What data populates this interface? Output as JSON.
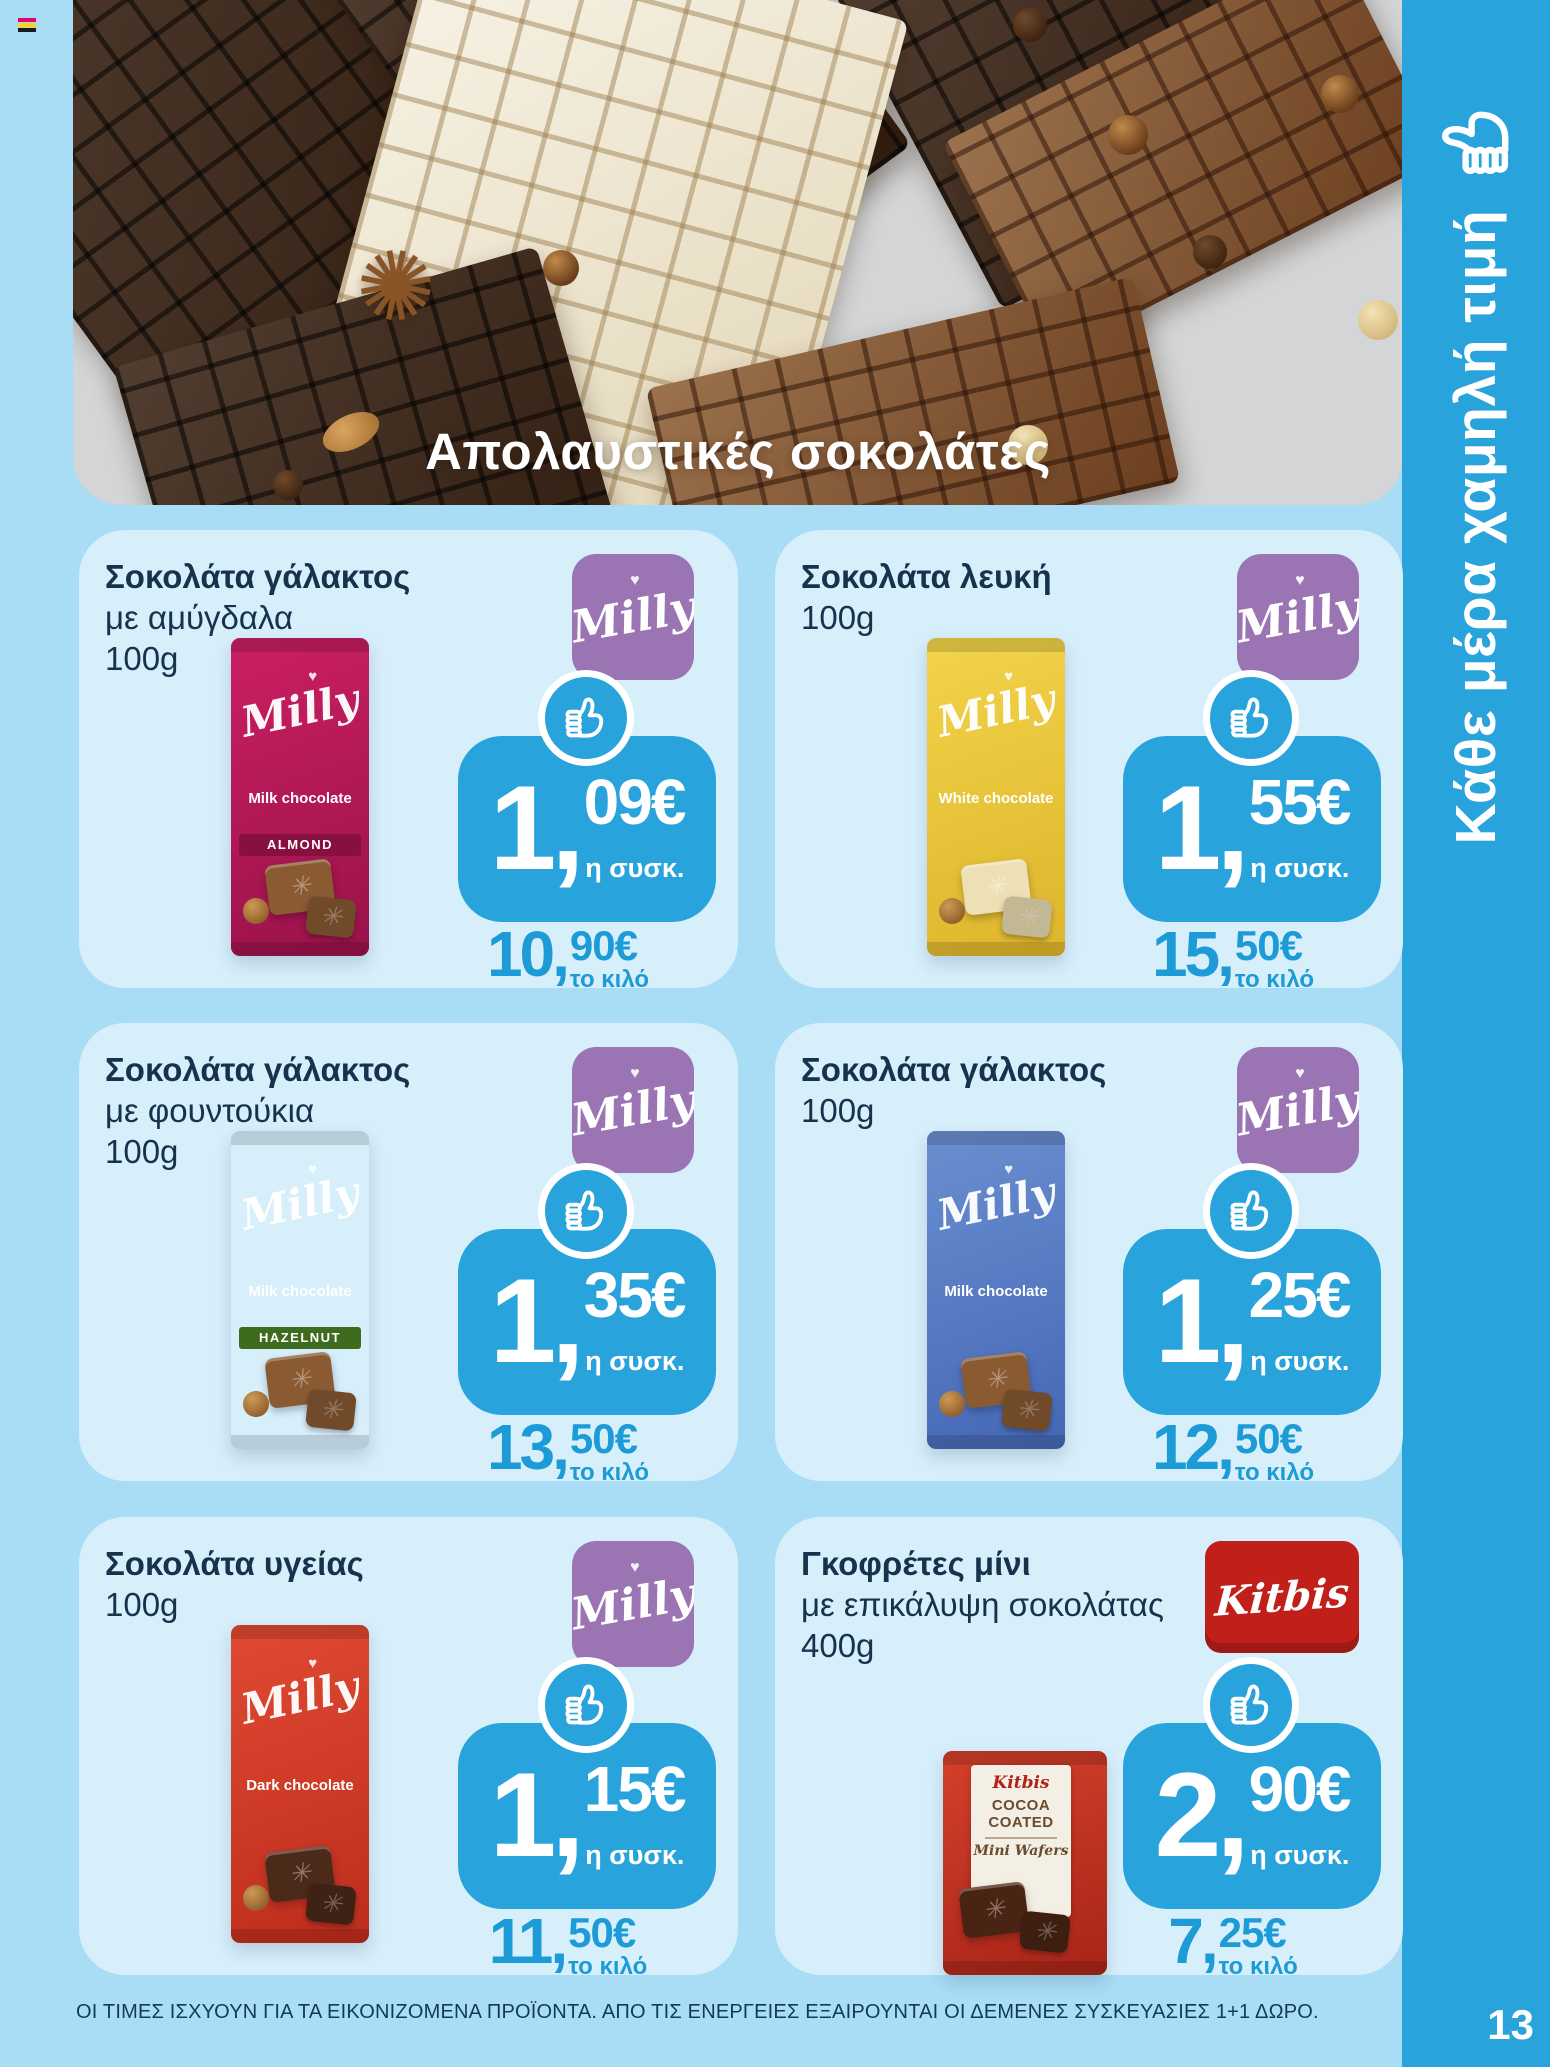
{
  "page": {
    "background": "#a9ddf5",
    "card_background": "#d7eefb",
    "accent_blue": "#29a3dc",
    "text_navy": "#16324c",
    "disclaimer": "ΟΙ ΤΙΜΕΣ ΙΣΧΥΟΥΝ ΓΙΑ ΤΑ ΕΙΚΟΝΙΖΟΜΕΝΑ ΠΡΟΪΟΝΤΑ. ΑΠΟ ΤΙΣ ΕΝΕΡΓΕΙΕΣ ΕΞΑΙΡΟΥΝΤΑΙ ΟΙ ΔΕΜΕΝΕΣ ΣΥΣΚΕΥΑΣΙΕΣ 1+1 ΔΩΡΟ.",
    "print_mark_colors": [
      "#e6007e",
      "#ffd400",
      "#1a1a1a"
    ]
  },
  "hero": {
    "title": "Απολαυστικές σοκολάτες",
    "star_glyph": "✺"
  },
  "sidebar": {
    "label": "Κάθε μέρα χαμηλή τιμή",
    "icon": "thumbs-up",
    "page_number": "13"
  },
  "products": [
    {
      "name_lines": [
        "Σοκολάτα γάλακτος",
        "με αμύγδαλα",
        "100g"
      ],
      "brand": "Milly",
      "brand_color": "#9a74b3",
      "price_pack": {
        "main": "1,",
        "cents": "09€",
        "label": "η συσκ."
      },
      "price_kilo": {
        "main": "10,",
        "cents": "90€",
        "label": "το κιλό"
      },
      "package": {
        "variant": "milly",
        "script": "Milly",
        "sub": "Milk chocolate",
        "band": "ALMOND",
        "colors": {
          "wrap": "#cb1f63",
          "wrap2": "#99124a",
          "band": "#871040",
          "chunk": "#8a5a33"
        }
      }
    },
    {
      "name_lines": [
        "Σοκολάτα λευκή",
        "100g"
      ],
      "brand": "Milly",
      "brand_color": "#9a74b3",
      "price_pack": {
        "main": "1,",
        "cents": "55€",
        "label": "η συσκ."
      },
      "price_kilo": {
        "main": "15,",
        "cents": "50€",
        "label": "το κιλό"
      },
      "package": {
        "variant": "milly",
        "script": "Milly",
        "sub": "White chocolate",
        "band": null,
        "colors": {
          "wrap": "#f2d44a",
          "wrap2": "#ddb52c",
          "band": "",
          "chunk": "#eee0b5"
        }
      }
    },
    {
      "name_lines": [
        "Σοκολάτα γάλακτος",
        "με φουντούκια",
        "100g"
      ],
      "brand": "Milly",
      "brand_color": "#9a74b3",
      "price_pack": {
        "main": "1,",
        "cents": "35€",
        "label": "η συσκ."
      },
      "price_kilo": {
        "main": "13,",
        "cents": "50€",
        "label": "το κιλό"
      },
      "package": {
        "variant": "milly",
        "script": "Milly",
        "sub": "Milk chocolate",
        "band": "HAZELNUT",
        "colors": {
          "wrap": "#a8cc3b",
          "wrap2": "#8aب1227",
          "band": "#3f6b1f",
          "chunk": "#8a5a33"
        }
      }
    },
    {
      "name_lines": [
        "Σοκολάτα γάλακτος",
        "100g"
      ],
      "brand": "Milly",
      "brand_color": "#9a74b3",
      "price_pack": {
        "main": "1,",
        "cents": "25€",
        "label": "η συσκ."
      },
      "price_kilo": {
        "main": "12,",
        "cents": "50€",
        "label": "το κιλό"
      },
      "package": {
        "variant": "milly",
        "script": "Milly",
        "sub": "Milk chocolate",
        "band": null,
        "colors": {
          "wrap": "#6a8fd0",
          "wrap2": "#4567b5",
          "band": "",
          "chunk": "#8a5a33"
        }
      }
    },
    {
      "name_lines": [
        "Σοκολάτα υγείας",
        "100g"
      ],
      "brand": "Milly",
      "brand_color": "#9a74b3",
      "price_pack": {
        "main": "1,",
        "cents": "15€",
        "label": "η συσκ."
      },
      "price_kilo": {
        "main": "11,",
        "cents": "50€",
        "label": "το κιλό"
      },
      "package": {
        "variant": "milly",
        "script": "Milly",
        "sub": "Dark chocolate",
        "band": null,
        "colors": {
          "wrap": "#e04a33",
          "wrap2": "#bd2c1c",
          "band": "",
          "chunk": "#4c2a1a"
        }
      }
    },
    {
      "name_lines": [
        "Γκοφρέτες μίνι",
        "με επικάλυψη σοκολάτας",
        "400g"
      ],
      "brand": "Kitbis",
      "brand_color": "#c1201a",
      "price_pack": {
        "main": "2,",
        "cents": "90€",
        "label": "η συσκ."
      },
      "price_kilo": {
        "main": "7,",
        "cents": "25€",
        "label": "το κιλό"
      },
      "package": {
        "variant": "kitbis",
        "panel_brand": "Kitbis",
        "panel_title": "COCOA COATED",
        "panel_script": "Mini Wafers",
        "colors": {
          "wrap": "#d4402c",
          "wrap2": "#a82417",
          "band": "",
          "chunk": "#4a2413"
        }
      }
    }
  ]
}
